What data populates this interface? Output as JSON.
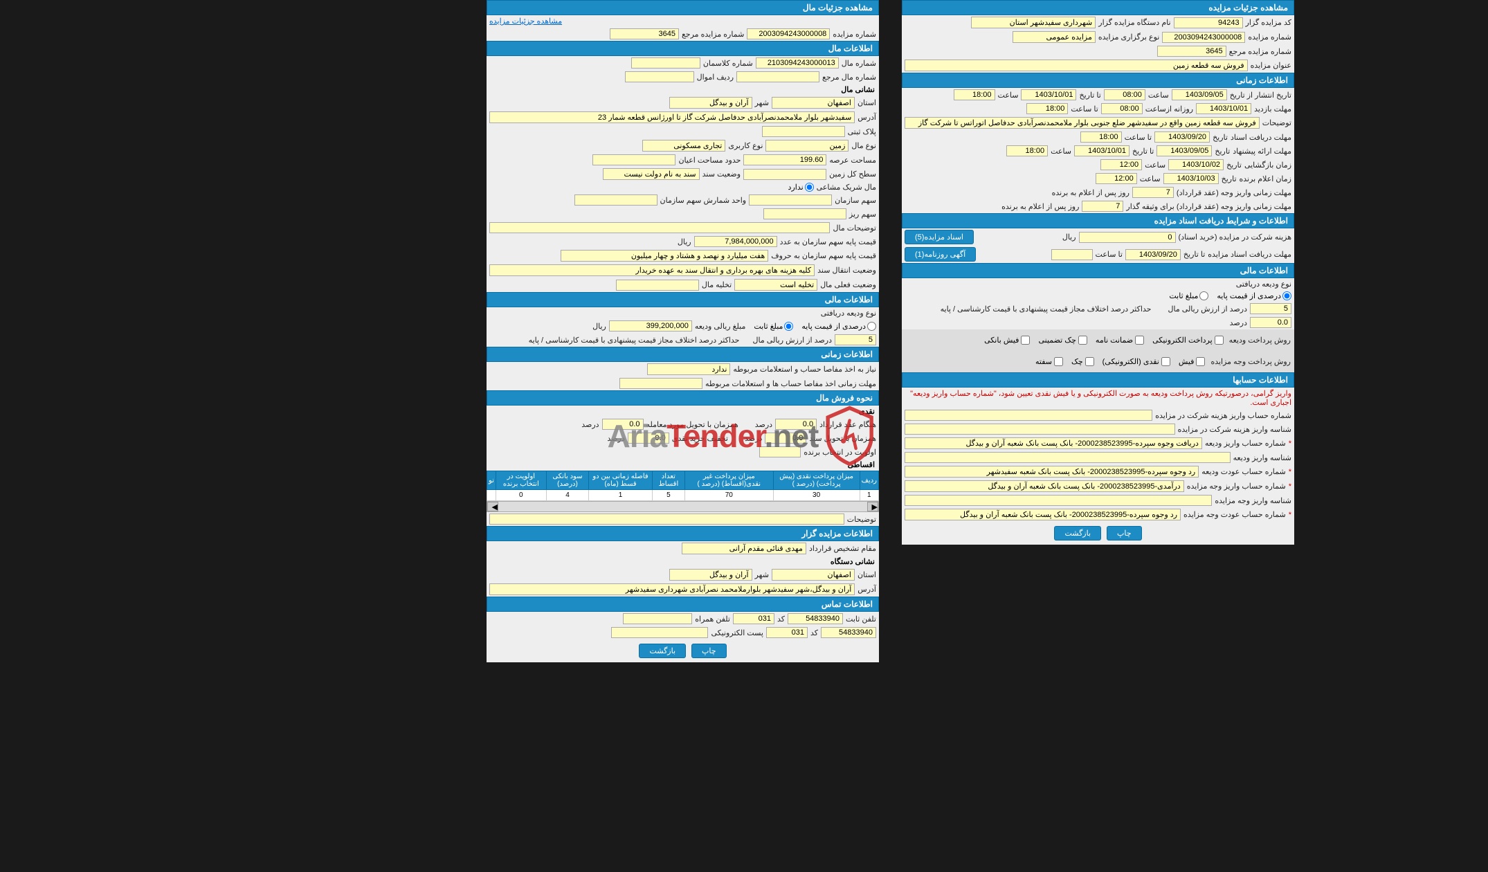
{
  "colors": {
    "header_bg": "#1e8cc4",
    "header_border": "#0a6fa3",
    "field_bg": "#fefcc0",
    "panel_bg": "#eeeeee",
    "link": "#0066cc",
    "required": "#cc0000"
  },
  "right": {
    "sec1_title": "مشاهده جزئیات مزایده",
    "code_label": "کد مزایده گزار",
    "code_val": "94243",
    "device_label": "نام دستگاه مزایده گزار",
    "device_val": "شهرداری سفیدشهر استان",
    "auction_no_label": "شماره مزایده",
    "auction_no_val": "2003094243000008",
    "type_label": "نوع برگزاری مزایده",
    "type_val": "مزایده عمومی",
    "ref_label": "شماره مزایده مرجع",
    "ref_val": "3645",
    "title_label": "عنوان مزایده",
    "title_val": "فروش سه قطعه زمین",
    "sec2_title": "اطلاعات زمانی",
    "pub_from_label": "تاریخ انتشار از تاریخ",
    "pub_from_date": "1403/09/05",
    "time_label": "ساعت",
    "pub_from_time": "08:00",
    "to_date_label": "تا تاریخ",
    "pub_to_date": "1403/10/01",
    "pub_to_time": "18:00",
    "visit_label": "مهلت بازدید",
    "visit_from": "1403/10/01",
    "daily_from_label": "روزانه ازساعت",
    "visit_time_from": "08:00",
    "to_time_label": "تا ساعت",
    "visit_time_to": "18:00",
    "desc_label": "توضیحات",
    "desc_val": "فروش سه قطعه زمین واقع در سفیدشهر ضلع جنوبی بلوار ملامحمدنصرآبادی حدفاصل اتوراتس تا شرکت گاز",
    "doc_deadline_label": "مهلت دریافت اسناد",
    "date_label": "تاریخ",
    "doc_date": "1403/09/20",
    "doc_time": "18:00",
    "offer_label": "مهلت ارائه پیشنهاد",
    "offer_date": "1403/09/05",
    "open_label": "زمان بازگشایی",
    "open_date": "1403/10/02",
    "open_time": "12:00",
    "winner_label": "زمان اعلام برنده",
    "winner_date": "1403/10/03",
    "winner_time": "12:00",
    "deposit_days_label": "مهلت زمانی واریز وجه (عقد قرارداد)",
    "deposit_days": "7",
    "days_after": "روز پس از اعلام به برنده",
    "guarantee_days_label": "مهلت زمانی واریز وجه (عقد قرارداد) برای وثیقه گذار",
    "guarantee_days": "7",
    "sec3_title": "اطلاعات و شرایط دریافت اسناد مزایده",
    "fee_label": "هزینه شرکت در مزایده (خرید اسناد)",
    "fee_val": "0",
    "rial": "ریال",
    "btn_docs": "اسناد مزایده(5)",
    "doc_deadline2_label": "مهلت دریافت اسناد مزایده",
    "doc_deadline2_date": "1403/09/20",
    "btn_news": "آگهی روزنامه(1)",
    "sec4_title": "اطلاعات مالی",
    "deposit_type_label": "نوع ودیعه دریافتی",
    "percent_base": "درصدی از قیمت پایه",
    "fixed_amount": "مبلغ ثابت",
    "percent_val": "5",
    "percent_label": "درصد از ارزش ریالی مال",
    "diff_label": "حداکثر درصد اختلاف مجاز قیمت پیشنهادی با قیمت کارشناسی / پایه",
    "diff_val": "0.0",
    "percent": "درصد",
    "pay_method_label": "روش پرداخت ودیعه",
    "elec_pay": "پرداخت الکترونیکی",
    "guarantee": "ضمانت نامه",
    "check_guarantee": "چک تضمینی",
    "bank_slip": "فیش بانکی",
    "pay_method2_label": "روش پرداخت وجه مزایده",
    "slip": "فیش",
    "cash_elec": "نقدی (الکترونیکی)",
    "check": "چک",
    "safteh": "سفته",
    "sec5_title": "اطلاعات حسابها",
    "warning": "واریز گرامی، درصورتیکه روش پرداخت ودیعه به صورت الکترونیکی و یا فیش نقدی تعیین شود، \"شماره حساب واریز ودیعه\" اجباری است.",
    "acc1_label": "شماره حساب واریز هزینه شرکت در مزایده",
    "acc2_label": "شناسه واریز هزینه شرکت در مزایده",
    "acc3_label": "شماره حساب واریز ودیعه",
    "acc3_val": "دریافت وجوه سپرده-2000238523995- بانک پست بانک شعبه آران و بیدگل",
    "acc4_label": "شناسه واریز ودیعه",
    "acc5_label": "شماره حساب عودت ودیعه",
    "acc5_val": "رد وجوه سپرده-2000238523995- بانک پست بانک شعبه سفیدشهر",
    "acc6_label": "شماره حساب واریز وجه مزایده",
    "acc6_val": "درآمدی-2000238523995- بانک پست بانک شعبه آران و بیدگل",
    "acc7_label": "شناسه واریز وجه مزایده",
    "acc8_label": "شماره حساب عودت وجه مزایده",
    "acc8_val": "رد وجوه سپرده-2000238523995- بانک پست بانک شعبه آران و بیدگل",
    "btn_print": "چاپ",
    "btn_back": "بازگشت"
  },
  "left": {
    "sec1_title": "مشاهده جزئیات مال",
    "link_view": "مشاهده جزئیات مزایده",
    "ref_label": "شماره مزایده مرجع",
    "ref_val": "3645",
    "auction_no_label": "شماره مزایده",
    "auction_no_val": "2003094243000008",
    "sec2_title": "اطلاعات مال",
    "prop_no_label": "شماره مال",
    "prop_no_val": "2103094243000013",
    "class_label": "شماره کلاسمان",
    "ref2_label": "شماره مال مرجع",
    "row_label": "ردیف اموال",
    "sub_loc": "نشانی مال",
    "province_label": "استان",
    "province_val": "اصفهان",
    "city_label": "شهر",
    "city_val": "آران و بیدگل",
    "address_label": "آدرس",
    "address_val": "سفیدشهر بلوار ملامحمدنصرآبادی حدفاصل شرکت گاز تا اورژانس قطعه شمار 23",
    "plot_label": "پلاک ثبتی",
    "prop_type_label": "نوع مال",
    "prop_type_val": "زمین",
    "use_label": "نوع کاربری",
    "use_val": "تجاری مسکونی",
    "area_label": "مساحت عرصه",
    "area_val": "199.60",
    "building_label": "حدود مساحت اعیان",
    "floor_label": "سطح کل زمین",
    "doc_status_label": "وضعیت سند",
    "doc_status_val": "سند به نام دولت نیست",
    "shared_label": "مال شریک مشاعی",
    "no": "ندارد",
    "org_share_label": "سهم سازمان",
    "count_label": "واحد شمارش سهم سازمان",
    "sub_share_label": "سهم ریز",
    "prop_desc_label": "توضیحات مال",
    "base_price_label": "قیمت پایه سهم سازمان به عدد",
    "base_price_val": "7,984,000,000",
    "rial": "ریال",
    "price_words_label": "قیمت پایه سهم سازمان به حروف",
    "price_words_val": "هفت میلیارد و نهصد و هشتاد و چهار میلیون",
    "transfer_label": "وضعیت انتقال سند",
    "transfer_val": "کلیه هزینه های بهره برداری و انتقال سند به عهده خریدار",
    "current_label": "وضعیت فعلی مال",
    "current_val": "تخلیه است",
    "vacate_label": "تخلیه مال",
    "sec3_title": "اطلاعات مالی",
    "deposit_type_label": "نوع ودیعه دریافتی",
    "percent_base": "درصدی از قیمت پایه",
    "fixed": "مبلغ ثابت",
    "deposit_label": "مبلغ ریالی ودیعه",
    "deposit_val": "399,200,000",
    "percent_val": "5",
    "percent_text": "درصد از ارزش ریالی مال",
    "diff_label": "حداکثر درصد اختلاف مجاز قیمت پیشنهادی با قیمت کارشناسی / پایه",
    "sec4_title": "اطلاعات زمانی",
    "need_paper_label": "نیاز به اخذ مفاصا حساب و استعلامات مربوطه",
    "need_paper_val": "ندارد",
    "deadline_paper_label": "مهلت زمانی اخذ مفاصا حساب ها و استعلامات مربوطه",
    "sec5_title": "نحوه فروش مال",
    "cash_label": "نقدی",
    "contract_label": "هنگام عقد قرارداد",
    "contract_val": "0.0",
    "percent": "درصد",
    "delivery_label": "همزمان با تحویل مورد معامله",
    "delivery_val": "0.0",
    "doc_delivery_label": "همزمان با تحویل سند",
    "doc_delivery_val": "0.0",
    "cash_disc_label": "تخفیف خرید نقدی",
    "cash_disc_val": "0.0",
    "winner_pri_label": "اولویت در انتخاب برنده",
    "install_label": "اقساطی",
    "table": {
      "headers": [
        "ردیف",
        "میزان پرداخت نقدی (پیش پرداخت) (درصد )",
        "میزان پرداخت غیر نقدی(اقساط) (درصد )",
        "تعداد اقساط",
        "فاصله زمانی بین دو قسط (ماه)",
        "سود بانکی (درصد)",
        "اولویت در انتخاب برنده",
        "نو"
      ],
      "row": [
        "1",
        "30",
        "70",
        "5",
        "1",
        "4",
        "0",
        ""
      ]
    },
    "notes_label": "توضیحات",
    "sec6_title": "اطلاعات مزایده گزار",
    "auth_label": "مقام تشخیص قرارداد",
    "auth_val": "مهدی قنائی مقدم آرانی",
    "sub_org": "نشانی دستگاه",
    "province2_label": "استان",
    "province2_val": "اصفهان",
    "city2_label": "شهر",
    "city2_val": "آران و بیدگل",
    "address2_label": "آدرس",
    "address2_val": "آران و بیدگل،شهر سفیدشهر بلوارملامحمد نصرآبادی شهرداری سفیدشهر",
    "sec7_title": "اطلاعات تماس",
    "tel_label": "تلفن ثابت",
    "tel_val": "54833940",
    "code_label": "کد",
    "code_val": "031",
    "mobile_label": "تلفن همراه",
    "fax_val": "54833940",
    "fax_code": "031",
    "email_label": "پست الکترونیکی",
    "btn_print": "چاپ",
    "btn_back": "بازگشت"
  }
}
